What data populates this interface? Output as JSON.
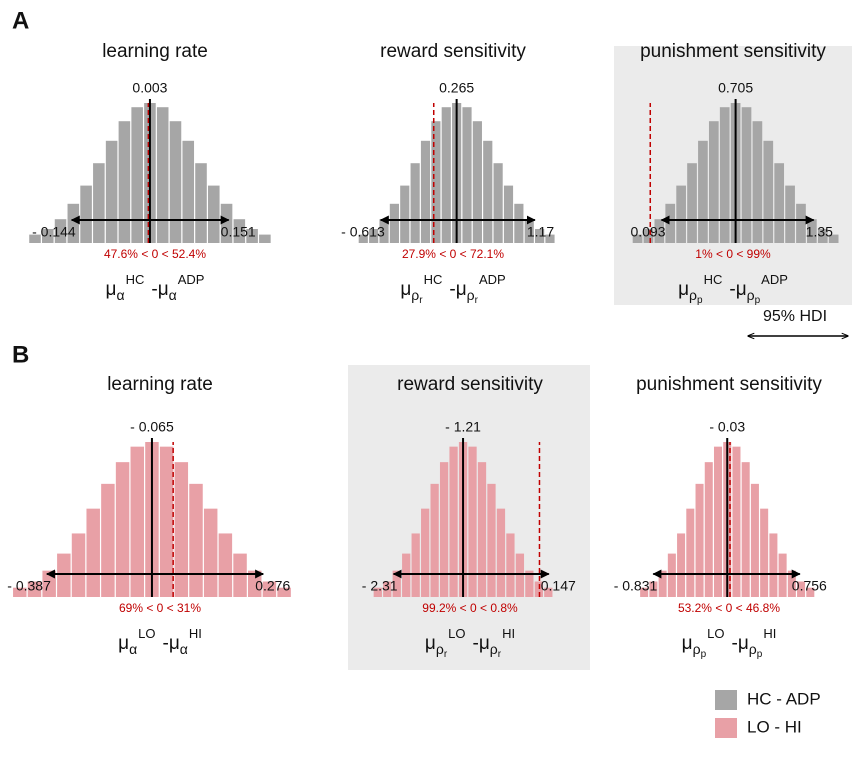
{
  "panel_labels": [
    "A",
    "B"
  ],
  "hdi_legend": "95% HDI",
  "legend": [
    {
      "name": "HC - ADP",
      "color": "#a6a6a6"
    },
    {
      "name": "LO - HI",
      "color": "#e8a0a6"
    }
  ],
  "chart_data": [
    {
      "type": "histogram",
      "title": "learning rate",
      "color": "#a6a6a6",
      "highlight": false,
      "xlim": [
        -0.26,
        0.27
      ],
      "bins": [
        -0.225,
        -0.201,
        -0.177,
        -0.153,
        -0.129,
        -0.105,
        -0.081,
        -0.057,
        -0.033,
        -0.009,
        0.015,
        0.039,
        0.063,
        0.087,
        0.111,
        0.135,
        0.159,
        0.183,
        0.207,
        0.231
      ],
      "counts": [
        6,
        10,
        17,
        28,
        41,
        57,
        73,
        87,
        97,
        100,
        97,
        87,
        73,
        57,
        41,
        28,
        17,
        10,
        6
      ],
      "mean": 0.003,
      "hdi": [
        {
          "value": -0.144,
          "label": "- 0.144"
        },
        0.151
      ],
      "reference_line": 0,
      "annotation": "47.6% < 0 < 52.4%",
      "xlabel": {
        "left": {
          "symbol": "μ",
          "sub": "α",
          "sup": "HC"
        },
        "operator": "-",
        "right": {
          "symbol": "μ",
          "sub": "α",
          "sup": "ADP"
        }
      }
    },
    {
      "type": "histogram",
      "title": "reward sensitivity",
      "color": "#a6a6a6",
      "highlight": false,
      "xlim": [
        -1.2,
        1.75
      ],
      "bins": [
        -0.875,
        -0.755,
        -0.635,
        -0.515,
        -0.395,
        -0.275,
        -0.155,
        -0.035,
        0.085,
        0.205,
        0.325,
        0.445,
        0.565,
        0.685,
        0.805,
        0.925,
        1.045,
        1.165,
        1.285,
        1.405
      ],
      "counts": [
        6,
        10,
        17,
        28,
        41,
        57,
        73,
        87,
        97,
        100,
        97,
        87,
        73,
        57,
        41,
        28,
        17,
        10,
        6
      ],
      "mean": 0.265,
      "hdi": [
        {
          "value": -0.613,
          "label": "- 0.613"
        },
        1.17
      ],
      "reference_line": 0,
      "annotation": "27.9% < 0 < 72.1%",
      "xlabel": {
        "left": {
          "symbol": "μ",
          "sub": "ρ",
          "subsub": "r",
          "sup": "HC"
        },
        "operator": "-",
        "right": {
          "symbol": "μ",
          "sub": "ρ",
          "subsub": "r",
          "sup": "ADP"
        }
      }
    },
    {
      "type": "histogram",
      "title": "punishment sensitivity",
      "color": "#a6a6a6",
      "highlight": true,
      "xlim": [
        -0.25,
        1.65
      ],
      "bins": [
        -0.15,
        -0.06,
        0.03,
        0.12,
        0.21,
        0.3,
        0.39,
        0.48,
        0.57,
        0.66,
        0.75,
        0.84,
        0.93,
        1.02,
        1.11,
        1.2,
        1.29,
        1.38,
        1.47,
        1.56
      ],
      "counts": [
        6,
        10,
        17,
        28,
        41,
        57,
        73,
        87,
        97,
        100,
        97,
        87,
        73,
        57,
        41,
        28,
        17,
        10,
        6
      ],
      "mean": 0.705,
      "hdi": [
        0.093,
        1.35
      ],
      "reference_line": 0,
      "annotation": "1% < 0 < 99%",
      "xlabel": {
        "left": {
          "symbol": "μ",
          "sub": "ρ",
          "subsub": "p",
          "sup": "HC"
        },
        "operator": "-",
        "right": {
          "symbol": "μ",
          "sub": "ρ",
          "subsub": "p",
          "sup": "ADP"
        }
      }
    },
    {
      "type": "histogram",
      "title": "learning rate",
      "color": "#e8a0a6",
      "highlight": false,
      "xlim": [
        -0.5,
        0.45
      ],
      "bins": [
        -0.4925,
        -0.4475,
        -0.4025,
        -0.3575,
        -0.3125,
        -0.2675,
        -0.2225,
        -0.1775,
        -0.1325,
        -0.0875,
        -0.0425,
        0.0025,
        0.0475,
        0.0925,
        0.1375,
        0.1825,
        0.2275,
        0.2725,
        0.3175,
        0.3625
      ],
      "counts": [
        6,
        10,
        17,
        28,
        41,
        57,
        73,
        87,
        97,
        100,
        97,
        87,
        73,
        57,
        41,
        28,
        17,
        10,
        6
      ],
      "mean": {
        "value": -0.065,
        "label": "- 0.065"
      },
      "hdi": [
        {
          "value": -0.387,
          "label": "- 0.387"
        },
        0.276
      ],
      "reference_line": 0,
      "annotation": "69% < 0 < 31%",
      "xlabel": {
        "left": {
          "symbol": "μ",
          "sub": "α",
          "sup": "LO"
        },
        "operator": "-",
        "right": {
          "symbol": "μ",
          "sub": "α",
          "sup": "HI"
        }
      }
    },
    {
      "type": "histogram",
      "title": "reward sensitivity",
      "color": "#e8a0a6",
      "highlight": true,
      "xlim": [
        -3.0,
        0.8
      ],
      "bins": [
        -2.635,
        -2.485,
        -2.335,
        -2.185,
        -2.035,
        -1.885,
        -1.735,
        -1.585,
        -1.435,
        -1.285,
        -1.135,
        -0.985,
        -0.835,
        -0.685,
        -0.535,
        -0.385,
        -0.235,
        -0.085,
        0.065,
        0.215
      ],
      "counts": [
        6,
        10,
        17,
        28,
        41,
        57,
        73,
        87,
        97,
        100,
        97,
        87,
        73,
        57,
        41,
        28,
        17,
        10,
        6
      ],
      "mean": {
        "value": -1.21,
        "label": "- 1.21"
      },
      "hdi": [
        {
          "value": -2.31,
          "label": "- 2.31"
        },
        0.147
      ],
      "reference_line": 0,
      "annotation": "99.2% < 0 < 0.8%",
      "xlabel": {
        "left": {
          "symbol": "μ",
          "sub": "ρ",
          "subsub": "r",
          "sup": "LO"
        },
        "operator": "-",
        "right": {
          "symbol": "μ",
          "sub": "ρ",
          "subsub": "r",
          "sup": "HI"
        }
      }
    },
    {
      "type": "histogram",
      "title": "punishment sensitivity",
      "color": "#e8a0a6",
      "highlight": false,
      "xlim": [
        -1.3,
        1.3
      ],
      "bins": [
        -0.98,
        -0.88,
        -0.78,
        -0.68,
        -0.58,
        -0.48,
        -0.38,
        -0.28,
        -0.18,
        -0.08,
        0.02,
        0.12,
        0.22,
        0.32,
        0.42,
        0.52,
        0.62,
        0.72,
        0.82,
        0.92
      ],
      "counts": [
        6,
        10,
        17,
        28,
        41,
        57,
        73,
        87,
        97,
        100,
        97,
        87,
        73,
        57,
        41,
        28,
        17,
        10,
        6
      ],
      "mean": {
        "value": -0.03,
        "label": "- 0.03"
      },
      "hdi": [
        {
          "value": -0.831,
          "label": "- 0.831"
        },
        0.756
      ],
      "reference_line": 0,
      "annotation": "53.2% < 0 < 46.8%",
      "xlabel": {
        "left": {
          "symbol": "μ",
          "sub": "ρ",
          "subsub": "p",
          "sup": "LO"
        },
        "operator": "-",
        "right": {
          "symbol": "μ",
          "sub": "ρ",
          "subsub": "p",
          "sup": "HI"
        }
      }
    }
  ]
}
